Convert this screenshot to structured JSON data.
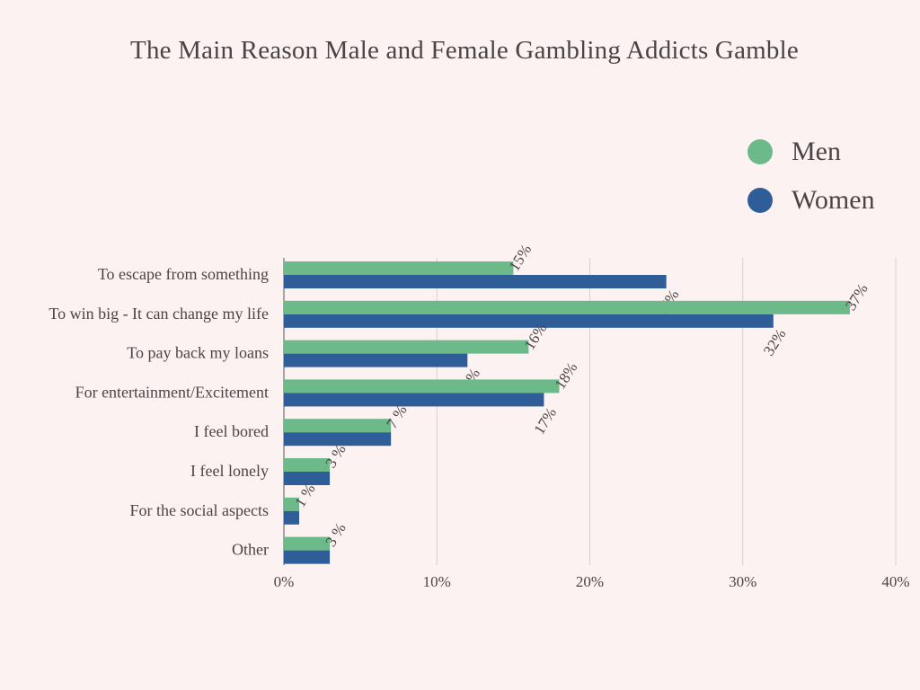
{
  "chart_data": {
    "type": "bar",
    "orientation": "horizontal",
    "title": "The Main Reason Male and Female Gambling Addicts Gamble",
    "categories": [
      "To escape from something",
      "To win big - It can change my life",
      "To pay back my loans",
      "For entertainment/Excitement",
      "I feel bored",
      "I feel lonely",
      "For the social aspects",
      "Other"
    ],
    "series": [
      {
        "name": "Men",
        "values": [
          15,
          37,
          16,
          18,
          7,
          3,
          1,
          3
        ],
        "color": "#6cb98a"
      },
      {
        "name": "Women",
        "values": [
          25,
          32,
          12,
          17,
          7,
          3,
          1,
          3
        ],
        "color": "#2e5d98"
      }
    ],
    "data_labels": [
      [
        "15%",
        "37%",
        "16%",
        "18%",
        "7 %",
        "3 %",
        "1 %",
        "3 %"
      ],
      [
        "25%",
        "32%",
        "12%",
        "17%",
        "",
        "",
        "",
        ""
      ]
    ],
    "xlim": [
      0,
      40
    ],
    "xticks": [
      0,
      10,
      20,
      30,
      40
    ],
    "xtick_labels": [
      "0%",
      "10%",
      "20%",
      "30%",
      "40%"
    ],
    "xlabel": "",
    "ylabel": "",
    "grid": true,
    "legend": "top-right"
  }
}
